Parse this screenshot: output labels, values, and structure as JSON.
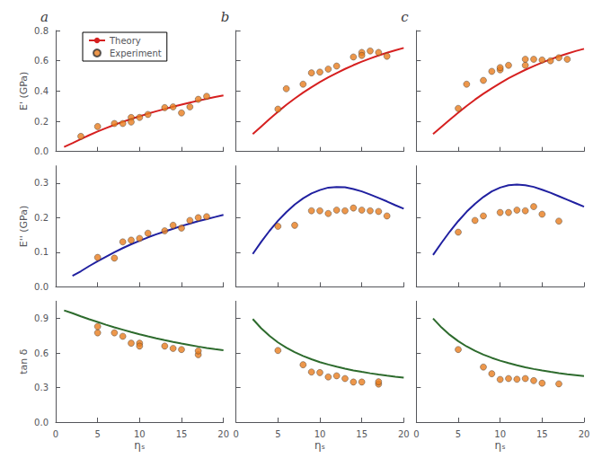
{
  "chart_data": [
    {
      "type": "line",
      "title": "a",
      "ylabel": "E' (GPa)",
      "legend": "upper left",
      "tick_labels": "y",
      "xlim": [
        0,
        20
      ],
      "xticks": [
        0,
        5,
        10,
        15,
        20
      ],
      "ylim": [
        0,
        0.8
      ],
      "yticks": [
        {
          "value": 0,
          "label": "0.0"
        },
        {
          "value": 0.2,
          "label": "0.2"
        },
        {
          "value": 0.4,
          "label": "0.4"
        },
        {
          "value": 0.6,
          "label": "0.6"
        },
        {
          "value": 0.8,
          "label": "0.8"
        }
      ],
      "series": [
        {
          "name": "Theory",
          "type": "line",
          "color": "#d62020",
          "x": [
            1,
            2,
            3,
            4,
            5,
            6,
            7,
            8,
            9,
            10,
            11,
            12,
            13,
            14,
            15,
            16,
            17,
            18,
            19,
            20
          ],
          "values": [
            0.03,
            0.055,
            0.082,
            0.108,
            0.132,
            0.155,
            0.176,
            0.196,
            0.215,
            0.233,
            0.25,
            0.266,
            0.281,
            0.296,
            0.31,
            0.323,
            0.336,
            0.348,
            0.36,
            0.371
          ]
        },
        {
          "name": "Experiment",
          "type": "scatter",
          "color": "#e87d1e",
          "x": [
            3,
            5,
            7,
            8,
            9,
            9,
            10,
            11,
            13,
            14,
            15,
            16,
            17,
            18
          ],
          "values": [
            0.1,
            0.165,
            0.185,
            0.185,
            0.225,
            0.195,
            0.225,
            0.245,
            0.29,
            0.295,
            0.255,
            0.295,
            0.345,
            0.365
          ]
        }
      ]
    },
    {
      "type": "line",
      "title": "b",
      "tick_labels": false,
      "xlim": [
        0,
        20
      ],
      "xticks": [
        0,
        5,
        10,
        15,
        20
      ],
      "ylim": [
        0,
        0.8
      ],
      "yticks": [
        {
          "value": 0,
          "label": "0.0"
        },
        {
          "value": 0.2,
          "label": "0.2"
        },
        {
          "value": 0.4,
          "label": "0.4"
        },
        {
          "value": 0.6,
          "label": "0.6"
        },
        {
          "value": 0.8,
          "label": "0.8"
        }
      ],
      "series": [
        {
          "type": "line",
          "color": "#d62020",
          "x": [
            2,
            3,
            4,
            5,
            6,
            7,
            8,
            9,
            10,
            11,
            12,
            13,
            14,
            15,
            16,
            17,
            18,
            19,
            20
          ],
          "values": [
            0.115,
            0.165,
            0.215,
            0.263,
            0.308,
            0.35,
            0.389,
            0.425,
            0.459,
            0.49,
            0.519,
            0.546,
            0.571,
            0.594,
            0.615,
            0.635,
            0.653,
            0.669,
            0.685
          ]
        },
        {
          "type": "scatter",
          "color": "#e87d1e",
          "x": [
            5,
            6,
            8,
            9,
            10,
            11,
            12,
            14,
            15,
            15,
            16,
            17,
            18
          ],
          "values": [
            0.28,
            0.415,
            0.445,
            0.52,
            0.525,
            0.545,
            0.565,
            0.625,
            0.655,
            0.635,
            0.665,
            0.655,
            0.63
          ]
        }
      ]
    },
    {
      "type": "line",
      "title": "c",
      "tick_labels": false,
      "xlim": [
        0,
        20
      ],
      "xticks": [
        0,
        5,
        10,
        15,
        20
      ],
      "ylim": [
        0,
        0.8
      ],
      "yticks": [
        {
          "value": 0,
          "label": "0.0"
        },
        {
          "value": 0.2,
          "label": "0.2"
        },
        {
          "value": 0.4,
          "label": "0.4"
        },
        {
          "value": 0.6,
          "label": "0.6"
        },
        {
          "value": 0.8,
          "label": "0.8"
        }
      ],
      "series": [
        {
          "type": "line",
          "color": "#d62020",
          "x": [
            2,
            3,
            4,
            5,
            6,
            7,
            8,
            9,
            10,
            11,
            12,
            13,
            14,
            15,
            16,
            17,
            18,
            19,
            20
          ],
          "values": [
            0.115,
            0.163,
            0.211,
            0.257,
            0.301,
            0.343,
            0.382,
            0.418,
            0.452,
            0.484,
            0.513,
            0.54,
            0.565,
            0.588,
            0.609,
            0.629,
            0.647,
            0.664,
            0.679
          ]
        },
        {
          "type": "scatter",
          "color": "#e87d1e",
          "x": [
            5,
            6,
            8,
            9,
            10,
            10,
            11,
            13,
            13,
            14,
            15,
            16,
            17,
            18
          ],
          "values": [
            0.285,
            0.445,
            0.47,
            0.53,
            0.54,
            0.555,
            0.57,
            0.57,
            0.61,
            0.61,
            0.605,
            0.6,
            0.62,
            0.61
          ]
        }
      ]
    },
    {
      "type": "line",
      "ylabel": "E'' (GPa)",
      "tick_labels": "y",
      "xlim": [
        0,
        20
      ],
      "xticks": [
        0,
        5,
        10,
        15,
        20
      ],
      "ylim": [
        0,
        0.35
      ],
      "yticks": [
        {
          "value": 0,
          "label": "0.0"
        },
        {
          "value": 0.1,
          "label": "0.1"
        },
        {
          "value": 0.2,
          "label": "0.2"
        },
        {
          "value": 0.3,
          "label": "0.3"
        }
      ],
      "series": [
        {
          "type": "line",
          "color": "#2020a0",
          "x": [
            2,
            3,
            4,
            5,
            6,
            7,
            8,
            9,
            10,
            11,
            12,
            13,
            14,
            15,
            16,
            17,
            18,
            19,
            20
          ],
          "values": [
            0.032,
            0.045,
            0.06,
            0.074,
            0.087,
            0.1,
            0.112,
            0.123,
            0.133,
            0.143,
            0.152,
            0.16,
            0.168,
            0.176,
            0.183,
            0.19,
            0.196,
            0.202,
            0.208
          ]
        },
        {
          "type": "scatter",
          "color": "#e87d1e",
          "x": [
            5,
            7,
            8,
            9,
            10,
            11,
            13,
            14,
            15,
            16,
            17,
            18
          ],
          "values": [
            0.085,
            0.083,
            0.13,
            0.135,
            0.14,
            0.155,
            0.162,
            0.178,
            0.17,
            0.192,
            0.2,
            0.203
          ]
        }
      ]
    },
    {
      "type": "line",
      "tick_labels": false,
      "xlim": [
        0,
        20
      ],
      "xticks": [
        0,
        5,
        10,
        15,
        20
      ],
      "ylim": [
        0,
        0.35
      ],
      "yticks": [
        {
          "value": 0,
          "label": "0.0"
        },
        {
          "value": 0.1,
          "label": "0.1"
        },
        {
          "value": 0.2,
          "label": "0.2"
        },
        {
          "value": 0.3,
          "label": "0.3"
        }
      ],
      "series": [
        {
          "type": "line",
          "color": "#2020a0",
          "x": [
            2,
            3,
            4,
            5,
            6,
            7,
            8,
            9,
            10,
            11,
            12,
            13,
            14,
            15,
            16,
            17,
            18,
            19,
            20
          ],
          "values": [
            0.095,
            0.13,
            0.162,
            0.191,
            0.216,
            0.238,
            0.256,
            0.27,
            0.28,
            0.287,
            0.289,
            0.288,
            0.283,
            0.276,
            0.267,
            0.257,
            0.247,
            0.236,
            0.226
          ]
        },
        {
          "type": "scatter",
          "color": "#e87d1e",
          "x": [
            5,
            7,
            9,
            10,
            11,
            12,
            13,
            14,
            15,
            16,
            17,
            18
          ],
          "values": [
            0.175,
            0.178,
            0.22,
            0.22,
            0.212,
            0.222,
            0.22,
            0.228,
            0.222,
            0.22,
            0.218,
            0.205
          ]
        }
      ]
    },
    {
      "type": "line",
      "tick_labels": false,
      "xlim": [
        0,
        20
      ],
      "xticks": [
        0,
        5,
        10,
        15,
        20
      ],
      "ylim": [
        0,
        0.35
      ],
      "yticks": [
        {
          "value": 0,
          "label": "0.0"
        },
        {
          "value": 0.1,
          "label": "0.1"
        },
        {
          "value": 0.2,
          "label": "0.2"
        },
        {
          "value": 0.3,
          "label": "0.3"
        }
      ],
      "series": [
        {
          "type": "line",
          "color": "#2020a0",
          "x": [
            2,
            3,
            4,
            5,
            6,
            7,
            8,
            9,
            10,
            11,
            12,
            13,
            14,
            15,
            16,
            17,
            18,
            19,
            20
          ],
          "values": [
            0.092,
            0.127,
            0.16,
            0.19,
            0.217,
            0.24,
            0.26,
            0.276,
            0.287,
            0.294,
            0.296,
            0.294,
            0.289,
            0.281,
            0.272,
            0.262,
            0.252,
            0.242,
            0.232
          ]
        },
        {
          "type": "scatter",
          "color": "#e87d1e",
          "x": [
            5,
            7,
            8,
            10,
            11,
            12,
            13,
            14,
            15,
            17
          ],
          "values": [
            0.158,
            0.192,
            0.205,
            0.215,
            0.215,
            0.222,
            0.22,
            0.232,
            0.21,
            0.19
          ]
        }
      ]
    },
    {
      "type": "line",
      "xlabel": "ηₛ",
      "ylabel": "tan δ",
      "xlim": [
        0,
        20
      ],
      "xticks": [
        0,
        5,
        10,
        15,
        20
      ],
      "ylim": [
        0,
        1.05
      ],
      "yticks": [
        {
          "value": 0,
          "label": "0.0"
        },
        {
          "value": 0.3,
          "label": "0.3"
        },
        {
          "value": 0.6,
          "label": "0.6"
        },
        {
          "value": 0.9,
          "label": "0.9"
        }
      ],
      "series": [
        {
          "type": "line",
          "color": "#2d6b2d",
          "x": [
            1,
            2,
            3,
            4,
            5,
            6,
            7,
            8,
            9,
            10,
            11,
            12,
            13,
            14,
            15,
            16,
            17,
            18,
            19,
            20
          ],
          "values": [
            0.97,
            0.945,
            0.918,
            0.893,
            0.869,
            0.845,
            0.823,
            0.802,
            0.781,
            0.762,
            0.744,
            0.727,
            0.711,
            0.696,
            0.682,
            0.669,
            0.656,
            0.644,
            0.633,
            0.623
          ]
        },
        {
          "type": "scatter",
          "color": "#e87d1e",
          "x": [
            5,
            5,
            7,
            8,
            9,
            10,
            10,
            13,
            14,
            15,
            17,
            17
          ],
          "values": [
            0.775,
            0.83,
            0.775,
            0.745,
            0.685,
            0.685,
            0.66,
            0.66,
            0.64,
            0.63,
            0.585,
            0.618
          ]
        }
      ]
    },
    {
      "type": "line",
      "xlabel": "ηₛ",
      "tick_labels": "x",
      "xlim": [
        0,
        20
      ],
      "xticks": [
        0,
        5,
        10,
        15,
        20
      ],
      "ylim": [
        0,
        1.05
      ],
      "yticks": [
        {
          "value": 0,
          "label": "0.0"
        },
        {
          "value": 0.3,
          "label": "0.3"
        },
        {
          "value": 0.6,
          "label": "0.6"
        },
        {
          "value": 0.9,
          "label": "0.9"
        }
      ],
      "series": [
        {
          "type": "line",
          "color": "#2d6b2d",
          "x": [
            2,
            3,
            4,
            5,
            6,
            7,
            8,
            9,
            10,
            11,
            12,
            13,
            14,
            15,
            16,
            17,
            18,
            19,
            20
          ],
          "values": [
            0.895,
            0.815,
            0.748,
            0.692,
            0.646,
            0.607,
            0.574,
            0.546,
            0.521,
            0.5,
            0.481,
            0.464,
            0.449,
            0.436,
            0.424,
            0.413,
            0.403,
            0.394,
            0.386
          ]
        },
        {
          "type": "scatter",
          "color": "#e87d1e",
          "x": [
            5,
            8,
            9,
            10,
            11,
            12,
            13,
            14,
            15,
            17,
            17
          ],
          "values": [
            0.622,
            0.498,
            0.435,
            0.43,
            0.392,
            0.402,
            0.378,
            0.348,
            0.348,
            0.33,
            0.35
          ]
        }
      ]
    },
    {
      "type": "line",
      "xlabel": "ηₛ",
      "tick_labels": "x",
      "xlim": [
        0,
        20
      ],
      "xticks": [
        0,
        5,
        10,
        15,
        20
      ],
      "ylim": [
        0,
        1.05
      ],
      "yticks": [
        {
          "value": 0,
          "label": "0.0"
        },
        {
          "value": 0.3,
          "label": "0.3"
        },
        {
          "value": 0.6,
          "label": "0.6"
        },
        {
          "value": 0.9,
          "label": "0.9"
        }
      ],
      "series": [
        {
          "type": "line",
          "color": "#2d6b2d",
          "x": [
            2,
            3,
            4,
            5,
            6,
            7,
            8,
            9,
            10,
            11,
            12,
            13,
            14,
            15,
            16,
            17,
            18,
            19,
            20
          ],
          "values": [
            0.9,
            0.822,
            0.757,
            0.703,
            0.657,
            0.619,
            0.586,
            0.558,
            0.533,
            0.512,
            0.493,
            0.476,
            0.461,
            0.448,
            0.436,
            0.425,
            0.415,
            0.407,
            0.399
          ]
        },
        {
          "type": "scatter",
          "color": "#e87d1e",
          "x": [
            5,
            8,
            9,
            10,
            11,
            12,
            13,
            14,
            15,
            17
          ],
          "values": [
            0.63,
            0.478,
            0.42,
            0.37,
            0.378,
            0.372,
            0.378,
            0.36,
            0.338,
            0.332
          ]
        }
      ]
    }
  ]
}
